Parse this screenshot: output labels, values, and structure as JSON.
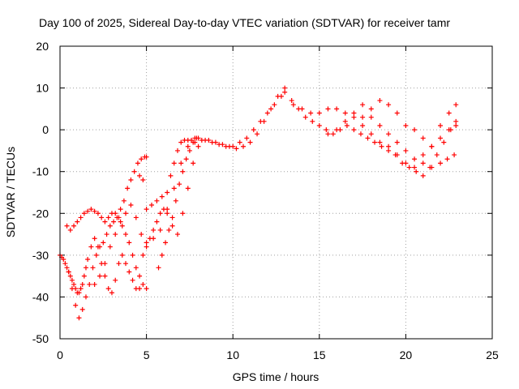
{
  "chart_data": {
    "type": "scatter",
    "title": "Day 100 of 2025, Sidereal Day-to-day VTEC variation (SDTVAR) for receiver tamr",
    "xlabel": "GPS time / hours",
    "ylabel": "SDTVAR / TECUs",
    "xlim": [
      0,
      25
    ],
    "ylim": [
      -50,
      20
    ],
    "xticks": [
      0,
      5,
      10,
      15,
      20,
      25
    ],
    "yticks": [
      20,
      10,
      0,
      -10,
      -20,
      -30,
      -40,
      -50
    ],
    "grid": true,
    "legend": "none",
    "marker": "plus",
    "color": "#ff0000",
    "series": [
      {
        "x": [
          0.0,
          0.1,
          0.2,
          0.3,
          0.4,
          0.5,
          0.6,
          0.7,
          0.8,
          0.9,
          1.0,
          1.1,
          1.2,
          1.3,
          1.4,
          1.5,
          1.6,
          1.8,
          2.0,
          2.2,
          2.4,
          2.6,
          2.8,
          3.0,
          3.2,
          3.4,
          3.6,
          3.8,
          4.0,
          4.2,
          4.4,
          4.6,
          4.8,
          5.0,
          5.2,
          5.4,
          5.6,
          5.8,
          6.0,
          6.2,
          6.4,
          6.6,
          6.8,
          7.0,
          7.2,
          7.4,
          7.6,
          7.8,
          8.0,
          8.4,
          8.8,
          9.2,
          9.6,
          10.0,
          10.4,
          10.8,
          11.2,
          11.6,
          12.0,
          12.4,
          12.8,
          13.0,
          13.4,
          13.8,
          14.2,
          14.6,
          15.0,
          15.4,
          15.8,
          16.2,
          16.6,
          17.0,
          17.4,
          17.8,
          18.2,
          18.6,
          19.0,
          19.4,
          19.8,
          20.2,
          20.6,
          21.0,
          21.4,
          21.8,
          22.2,
          22.6,
          22.9
        ],
        "y": [
          -30,
          -30.5,
          -31,
          -32,
          -33,
          -34,
          -35,
          -36,
          -37,
          -38,
          -39,
          -39,
          -38,
          -37,
          -35,
          -33,
          -31,
          -28,
          -26,
          -28,
          -32,
          -35,
          -38,
          -39,
          -36,
          -32,
          -30,
          -32,
          -34,
          -36,
          -38,
          -38,
          -30,
          -27,
          -26,
          -24,
          -22,
          -20,
          -19,
          -15,
          -11,
          -8,
          -5,
          -3,
          -2.5,
          -2.5,
          -2.5,
          -2,
          -2,
          -2.5,
          -3,
          -3.5,
          -4,
          -4,
          -3,
          -2,
          0,
          2,
          4,
          6,
          8,
          9,
          7,
          5,
          3,
          2,
          1,
          0,
          -1,
          0,
          1,
          0,
          -1,
          -2,
          -3,
          -4,
          -5,
          -6,
          -8,
          -9,
          -10,
          -11,
          -9,
          -6,
          -3,
          0,
          2
        ]
      },
      {
        "x": [
          0.4,
          0.6,
          0.8,
          1.0,
          1.2,
          1.4,
          1.6,
          1.8,
          2.0,
          2.2,
          2.4,
          2.6,
          2.8,
          3.0,
          3.2,
          3.4,
          3.6,
          3.8,
          4.0,
          4.2,
          4.4,
          4.6,
          4.8,
          5.0
        ],
        "y": [
          -23,
          -24,
          -23,
          -22,
          -21,
          -20,
          -19.5,
          -19,
          -19.5,
          -20,
          -21,
          -22,
          -21,
          -20,
          -20,
          -21,
          -23,
          -25,
          -27,
          -30,
          -33,
          -35,
          -37,
          -38
        ]
      },
      {
        "x": [
          0.5,
          0.7,
          0.9,
          1.1,
          1.3,
          1.5,
          1.7,
          1.9,
          2.1,
          2.3,
          2.5,
          2.7,
          2.9,
          3.1,
          3.3,
          3.5,
          3.7,
          3.9,
          4.1,
          4.3,
          4.5,
          4.7,
          4.9,
          5.0
        ],
        "y": [
          -34,
          -38,
          -42,
          -45,
          -43,
          -40,
          -37,
          -33,
          -30,
          -28,
          -27,
          -25,
          -23,
          -22,
          -21,
          -19,
          -17,
          -14,
          -12,
          -10,
          -8,
          -7,
          -6.5,
          -6.5
        ]
      },
      {
        "x": [
          2.0,
          2.3,
          2.6,
          2.9,
          3.2,
          3.5,
          3.8,
          4.1,
          4.4,
          4.7,
          5.0,
          5.4,
          5.8,
          6.2,
          6.6,
          7.0,
          7.4,
          7.8,
          8.2,
          8.6,
          9.0,
          9.4,
          9.8,
          10.2,
          10.6,
          11.0,
          11.4,
          11.8,
          12.2,
          12.6,
          13.0
        ],
        "y": [
          -37,
          -35,
          -32,
          -28,
          -25,
          -22,
          -20,
          -18,
          -21,
          -25,
          -28,
          -26,
          -24,
          -19,
          -14,
          -8,
          -4,
          -3,
          -2.5,
          -2.5,
          -3,
          -3.5,
          -4,
          -4.5,
          -4,
          -3,
          -1,
          2,
          5,
          8,
          10
        ]
      },
      {
        "x": [
          4.6,
          4.8,
          5.0,
          5.3,
          5.6,
          5.9,
          6.2,
          6.5,
          6.8,
          7.1,
          7.4,
          7.7,
          8.0
        ],
        "y": [
          -11,
          -12,
          -19,
          -18,
          -17,
          -16,
          -20,
          -23,
          -25,
          -20,
          -14,
          -8,
          -4
        ]
      },
      {
        "x": [
          5.7,
          5.9,
          6.1,
          6.3,
          6.5,
          6.7,
          6.9,
          7.1,
          7.3,
          7.5,
          7.7,
          7.9
        ],
        "y": [
          -33,
          -30,
          -27,
          -24,
          -21,
          -17,
          -13,
          -10,
          -7,
          -5,
          -3,
          -2
        ]
      },
      {
        "x": [
          13.5,
          14.0,
          14.5,
          15.0,
          15.5,
          16.0,
          16.5,
          17.0,
          17.5,
          18.0,
          18.5,
          19.0,
          19.5,
          20.0,
          20.5,
          21.0,
          21.5,
          22.0,
          22.5,
          22.9
        ],
        "y": [
          6,
          5,
          4,
          4,
          5,
          5,
          4,
          3,
          1,
          -1,
          -3,
          -4,
          -6,
          -8,
          -9,
          -6,
          -4,
          -2,
          0,
          1
        ]
      },
      {
        "x": [
          15.5,
          16.0,
          16.5,
          17.0,
          17.5,
          18.0,
          18.5,
          19.0,
          19.5,
          20.0,
          20.5,
          21.0,
          21.5,
          22.0,
          22.4,
          22.8
        ],
        "y": [
          -1,
          0,
          2,
          4,
          6,
          3,
          1,
          -1,
          -3,
          -5,
          -7,
          -8,
          -9,
          -8,
          -7,
          -6
        ]
      },
      {
        "x": [
          17.5,
          18.0,
          18.5,
          19.0,
          19.5,
          20.0,
          20.5,
          21.0,
          21.5,
          22.0,
          22.5,
          22.9
        ],
        "y": [
          3,
          5,
          7,
          6,
          4,
          1,
          0,
          -2,
          -4,
          1,
          4,
          6
        ]
      }
    ]
  }
}
